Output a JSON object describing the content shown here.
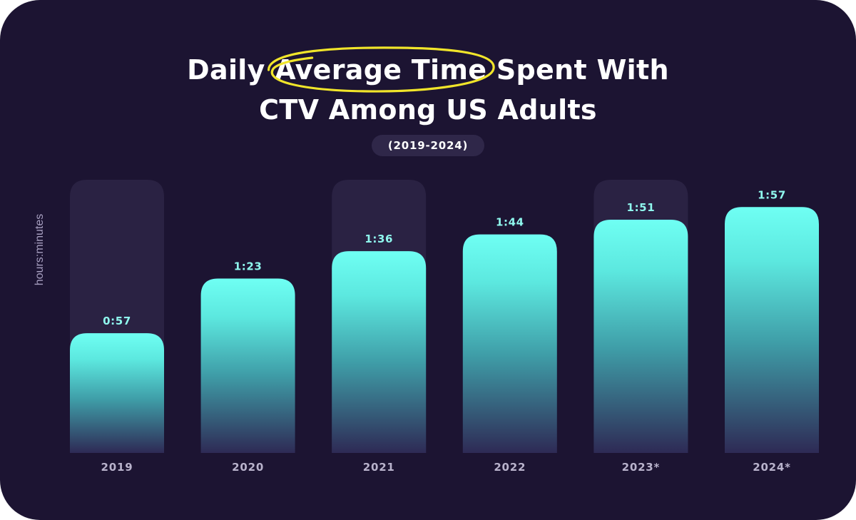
{
  "title": {
    "before": "Daily ",
    "highlight": "Average Time",
    "after": " Spent With",
    "line2": "CTV Among US Adults"
  },
  "subtitle": "(2019-2024)",
  "ylabel": "hours:minutes",
  "colors": {
    "background": "#1c1432",
    "bar_top": "#6ffff3",
    "bar_bottom": "#2e2a55",
    "track": "#2a2243",
    "highlight_ellipse": "#f1e52a",
    "value_text": "#8ff8ee",
    "tick_text": "#b9b3cc"
  },
  "chart_data": {
    "type": "bar",
    "title": "Daily Average Time Spent With CTV Among US Adults",
    "subtitle": "(2019-2024)",
    "xlabel": "",
    "ylabel": "hours:minutes",
    "categories": [
      "2019",
      "2020",
      "2021",
      "2022",
      "2023*",
      "2024*"
    ],
    "values_minutes": [
      57,
      83,
      96,
      104,
      111,
      117
    ],
    "value_labels": [
      "0:57",
      "1:23",
      "1:36",
      "1:44",
      "1:51",
      "1:57"
    ],
    "background_tracks": [
      true,
      false,
      true,
      false,
      true,
      false
    ],
    "ylim": [
      0,
      120
    ],
    "grid": false,
    "legend": "none"
  }
}
